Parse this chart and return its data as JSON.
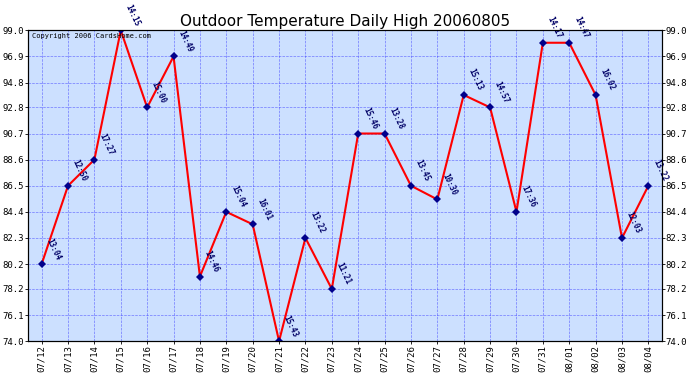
{
  "title": "Outdoor Temperature Daily High 20060805",
  "copyright_text": "Copyright 2006 CardsHome.com",
  "dates": [
    "07/12",
    "07/13",
    "07/14",
    "07/15",
    "07/16",
    "07/17",
    "07/18",
    "07/19",
    "07/20",
    "07/21",
    "07/22",
    "07/23",
    "07/24",
    "07/25",
    "07/26",
    "07/27",
    "07/28",
    "07/29",
    "07/30",
    "07/31",
    "08/01",
    "08/02",
    "08/03",
    "08/04"
  ],
  "values": [
    80.2,
    86.5,
    88.6,
    99.0,
    92.8,
    96.9,
    79.2,
    84.4,
    83.4,
    74.0,
    82.3,
    78.2,
    90.7,
    90.7,
    86.5,
    85.4,
    93.8,
    92.8,
    84.4,
    98.0,
    98.0,
    93.8,
    82.3,
    86.5
  ],
  "point_labels": [
    "13:04",
    "12:50",
    "17:27",
    "14:15",
    "15:00",
    "14:49",
    "14:46",
    "15:04",
    "16:01",
    "15:43",
    "13:22",
    "11:21",
    "15:46",
    "13:28",
    "13:45",
    "10:30",
    "15:13",
    "14:57",
    "17:36",
    "14:17",
    "14:47",
    "16:02",
    "12:03",
    "13:22"
  ],
  "line_color": "#ff0000",
  "marker_color": "#00008b",
  "bg_color": "#cce0ff",
  "grid_color": "#3333ff",
  "text_color": "#000066",
  "border_color": "#000000",
  "ylim_min": 74.0,
  "ylim_max": 99.0,
  "yticks": [
    74.0,
    76.1,
    78.2,
    80.2,
    82.3,
    84.4,
    86.5,
    88.6,
    90.7,
    92.8,
    94.8,
    96.9,
    99.0
  ],
  "title_fontsize": 11,
  "label_fontsize": 5.5,
  "tick_fontsize": 6.5,
  "copyright_fontsize": 5.0,
  "linewidth": 1.5,
  "markersize": 4
}
